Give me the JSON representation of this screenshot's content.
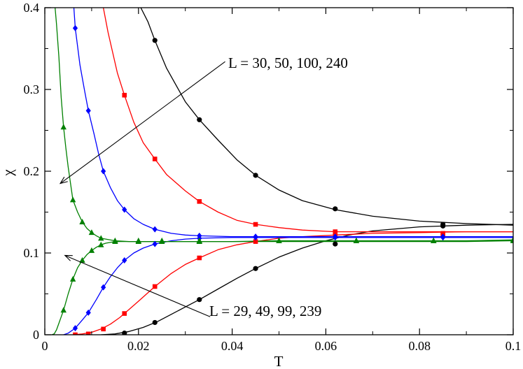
{
  "chart_data": {
    "type": "scatter",
    "xlabel": "T",
    "ylabel": "χ",
    "xlim": [
      0,
      0.1
    ],
    "ylim": [
      0,
      0.4
    ],
    "x_ticks": [
      0,
      0.02,
      0.04,
      0.06,
      0.08,
      0.1
    ],
    "x_tick_labels": [
      "0",
      "0.02",
      "0.04",
      "0.06",
      "0.08",
      "0.1"
    ],
    "y_ticks": [
      0,
      0.1,
      0.2,
      0.3,
      0.4
    ],
    "y_tick_labels": [
      "0",
      "0.1",
      "0.2",
      "0.3",
      "0.4"
    ],
    "grid": false,
    "annotations": [
      {
        "text": "L = 30, 50, 100, 240",
        "arrow_from": [
          0.0385,
          0.334
        ],
        "arrow_to": [
          0.0033,
          0.185
        ]
      },
      {
        "text": "L = 29, 49, 99, 239",
        "arrow_from": [
          0.0353,
          0.022
        ],
        "arrow_to": [
          0.0043,
          0.097
        ]
      }
    ],
    "series": [
      {
        "color": "#000000",
        "marker": "circle",
        "branch": "upper",
        "x": [
          0.0235,
          0.033,
          0.045,
          0.062,
          0.085
        ],
        "y": [
          0.36,
          0.263,
          0.195,
          0.154,
          0.135
        ],
        "curve_x": [
          0.0205,
          0.022,
          0.0235,
          0.026,
          0.03,
          0.033,
          0.037,
          0.041,
          0.045,
          0.05,
          0.055,
          0.062,
          0.07,
          0.08,
          0.09,
          0.1
        ],
        "curve_y": [
          0.4,
          0.383,
          0.36,
          0.326,
          0.285,
          0.263,
          0.238,
          0.214,
          0.195,
          0.177,
          0.164,
          0.153,
          0.145,
          0.139,
          0.136,
          0.134
        ]
      },
      {
        "color": "#000000",
        "marker": "circle",
        "branch": "lower",
        "x": [
          0.017,
          0.0235,
          0.033,
          0.045,
          0.062,
          0.085
        ],
        "y": [
          0.002,
          0.015,
          0.043,
          0.081,
          0.111,
          0.133
        ],
        "curve_x": [
          0.012,
          0.015,
          0.018,
          0.021,
          0.024,
          0.027,
          0.03,
          0.033,
          0.037,
          0.041,
          0.045,
          0.05,
          0.055,
          0.06,
          0.065,
          0.07,
          0.08,
          0.09,
          0.1
        ],
        "curve_y": [
          0.0,
          0.001,
          0.004,
          0.009,
          0.016,
          0.025,
          0.034,
          0.043,
          0.056,
          0.069,
          0.081,
          0.095,
          0.106,
          0.115,
          0.122,
          0.127,
          0.132,
          0.134,
          0.135
        ]
      },
      {
        "color": "#ff0000",
        "marker": "square",
        "branch": "upper",
        "x": [
          0.017,
          0.0235,
          0.033,
          0.045,
          0.062,
          0.085
        ],
        "y": [
          0.293,
          0.215,
          0.163,
          0.135,
          0.126,
          0.124
        ],
        "curve_x": [
          0.0125,
          0.0135,
          0.0145,
          0.0155,
          0.017,
          0.019,
          0.021,
          0.0235,
          0.026,
          0.03,
          0.033,
          0.037,
          0.041,
          0.045,
          0.05,
          0.055,
          0.062,
          0.07,
          0.08,
          0.09,
          0.1
        ],
        "curve_y": [
          0.4,
          0.37,
          0.345,
          0.32,
          0.293,
          0.26,
          0.235,
          0.215,
          0.196,
          0.176,
          0.163,
          0.15,
          0.14,
          0.135,
          0.131,
          0.128,
          0.126,
          0.126,
          0.126,
          0.126,
          0.126
        ]
      },
      {
        "color": "#ff0000",
        "marker": "square",
        "branch": "lower",
        "x": [
          0.0065,
          0.0093,
          0.0125,
          0.017,
          0.0235,
          0.033,
          0.045,
          0.062,
          0.085
        ],
        "y": [
          0.0,
          0.001,
          0.007,
          0.026,
          0.059,
          0.094,
          0.114,
          0.121,
          0.123
        ],
        "curve_x": [
          0.006,
          0.008,
          0.01,
          0.012,
          0.014,
          0.016,
          0.018,
          0.02,
          0.0235,
          0.027,
          0.03,
          0.033,
          0.037,
          0.041,
          0.045,
          0.05,
          0.055,
          0.062,
          0.07,
          0.08,
          0.09,
          0.1
        ],
        "curve_y": [
          0.0,
          0.001,
          0.003,
          0.007,
          0.013,
          0.021,
          0.031,
          0.041,
          0.059,
          0.075,
          0.086,
          0.094,
          0.104,
          0.11,
          0.114,
          0.118,
          0.12,
          0.122,
          0.124,
          0.125,
          0.126,
          0.126
        ]
      },
      {
        "color": "#0000ff",
        "marker": "diamond",
        "branch": "upper",
        "x": [
          0.0065,
          0.0093,
          0.0125,
          0.017,
          0.0235,
          0.033,
          0.045,
          0.062,
          0.085
        ],
        "y": [
          0.375,
          0.274,
          0.2,
          0.153,
          0.129,
          0.121,
          0.12,
          0.12,
          0.12
        ],
        "curve_x": [
          0.0062,
          0.0065,
          0.0075,
          0.0085,
          0.0093,
          0.0105,
          0.0115,
          0.0125,
          0.014,
          0.0155,
          0.017,
          0.019,
          0.021,
          0.0235,
          0.027,
          0.03,
          0.033,
          0.04,
          0.05,
          0.062,
          0.075,
          0.085,
          0.1
        ],
        "curve_y": [
          0.4,
          0.375,
          0.33,
          0.298,
          0.274,
          0.246,
          0.221,
          0.2,
          0.18,
          0.164,
          0.153,
          0.142,
          0.135,
          0.129,
          0.124,
          0.122,
          0.121,
          0.12,
          0.12,
          0.12,
          0.12,
          0.12,
          0.12
        ]
      },
      {
        "color": "#0000ff",
        "marker": "diamond",
        "branch": "lower",
        "x": [
          0.0065,
          0.0093,
          0.0125,
          0.017,
          0.0235,
          0.033,
          0.045,
          0.062,
          0.085
        ],
        "y": [
          0.008,
          0.027,
          0.058,
          0.091,
          0.111,
          0.118,
          0.119,
          0.119,
          0.119
        ],
        "curve_x": [
          0.004,
          0.005,
          0.0065,
          0.008,
          0.0093,
          0.011,
          0.0125,
          0.014,
          0.0155,
          0.017,
          0.019,
          0.021,
          0.0235,
          0.027,
          0.03,
          0.033,
          0.04,
          0.05,
          0.062,
          0.075,
          0.085,
          0.1
        ],
        "curve_y": [
          0.0,
          0.002,
          0.008,
          0.018,
          0.027,
          0.043,
          0.058,
          0.071,
          0.082,
          0.091,
          0.1,
          0.106,
          0.111,
          0.115,
          0.117,
          0.118,
          0.119,
          0.119,
          0.119,
          0.119,
          0.119,
          0.119
        ]
      },
      {
        "color": "#008000",
        "marker": "triangle",
        "branch": "upper",
        "x": [
          0.004,
          0.006,
          0.008,
          0.01,
          0.012,
          0.015,
          0.02,
          0.025,
          0.033,
          0.05,
          0.0665,
          0.083,
          0.1
        ],
        "y": [
          0.254,
          0.165,
          0.138,
          0.125,
          0.118,
          0.115,
          0.115,
          0.115,
          0.115,
          0.115,
          0.115,
          0.115,
          0.115
        ],
        "curve_x": [
          0.0022,
          0.0025,
          0.003,
          0.0035,
          0.004,
          0.0045,
          0.005,
          0.006,
          0.007,
          0.008,
          0.009,
          0.01,
          0.011,
          0.012,
          0.013,
          0.015,
          0.018,
          0.022,
          0.03,
          0.04,
          0.05,
          0.06,
          0.07,
          0.08,
          0.09,
          0.1
        ],
        "curve_y": [
          0.4,
          0.38,
          0.34,
          0.29,
          0.254,
          0.228,
          0.205,
          0.165,
          0.15,
          0.138,
          0.13,
          0.125,
          0.121,
          0.118,
          0.117,
          0.115,
          0.114,
          0.114,
          0.114,
          0.114,
          0.114,
          0.114,
          0.114,
          0.114,
          0.114,
          0.115
        ]
      },
      {
        "color": "#008000",
        "marker": "triangle",
        "branch": "lower",
        "x": [
          0.004,
          0.006,
          0.008,
          0.01,
          0.012,
          0.015,
          0.02,
          0.025,
          0.033,
          0.05,
          0.0665,
          0.083,
          0.1
        ],
        "y": [
          0.03,
          0.068,
          0.091,
          0.103,
          0.11,
          0.114,
          0.114,
          0.114,
          0.114,
          0.115,
          0.115,
          0.115,
          0.116
        ],
        "curve_x": [
          0.0015,
          0.002,
          0.0025,
          0.003,
          0.0035,
          0.004,
          0.005,
          0.006,
          0.007,
          0.008,
          0.009,
          0.01,
          0.011,
          0.012,
          0.013,
          0.015,
          0.018,
          0.022,
          0.03,
          0.04,
          0.05,
          0.06,
          0.07,
          0.08,
          0.09,
          0.1
        ],
        "curve_y": [
          0.0,
          0.001,
          0.006,
          0.014,
          0.022,
          0.03,
          0.05,
          0.068,
          0.082,
          0.091,
          0.098,
          0.103,
          0.107,
          0.11,
          0.112,
          0.114,
          0.114,
          0.114,
          0.114,
          0.114,
          0.115,
          0.115,
          0.115,
          0.115,
          0.115,
          0.116
        ]
      }
    ]
  }
}
